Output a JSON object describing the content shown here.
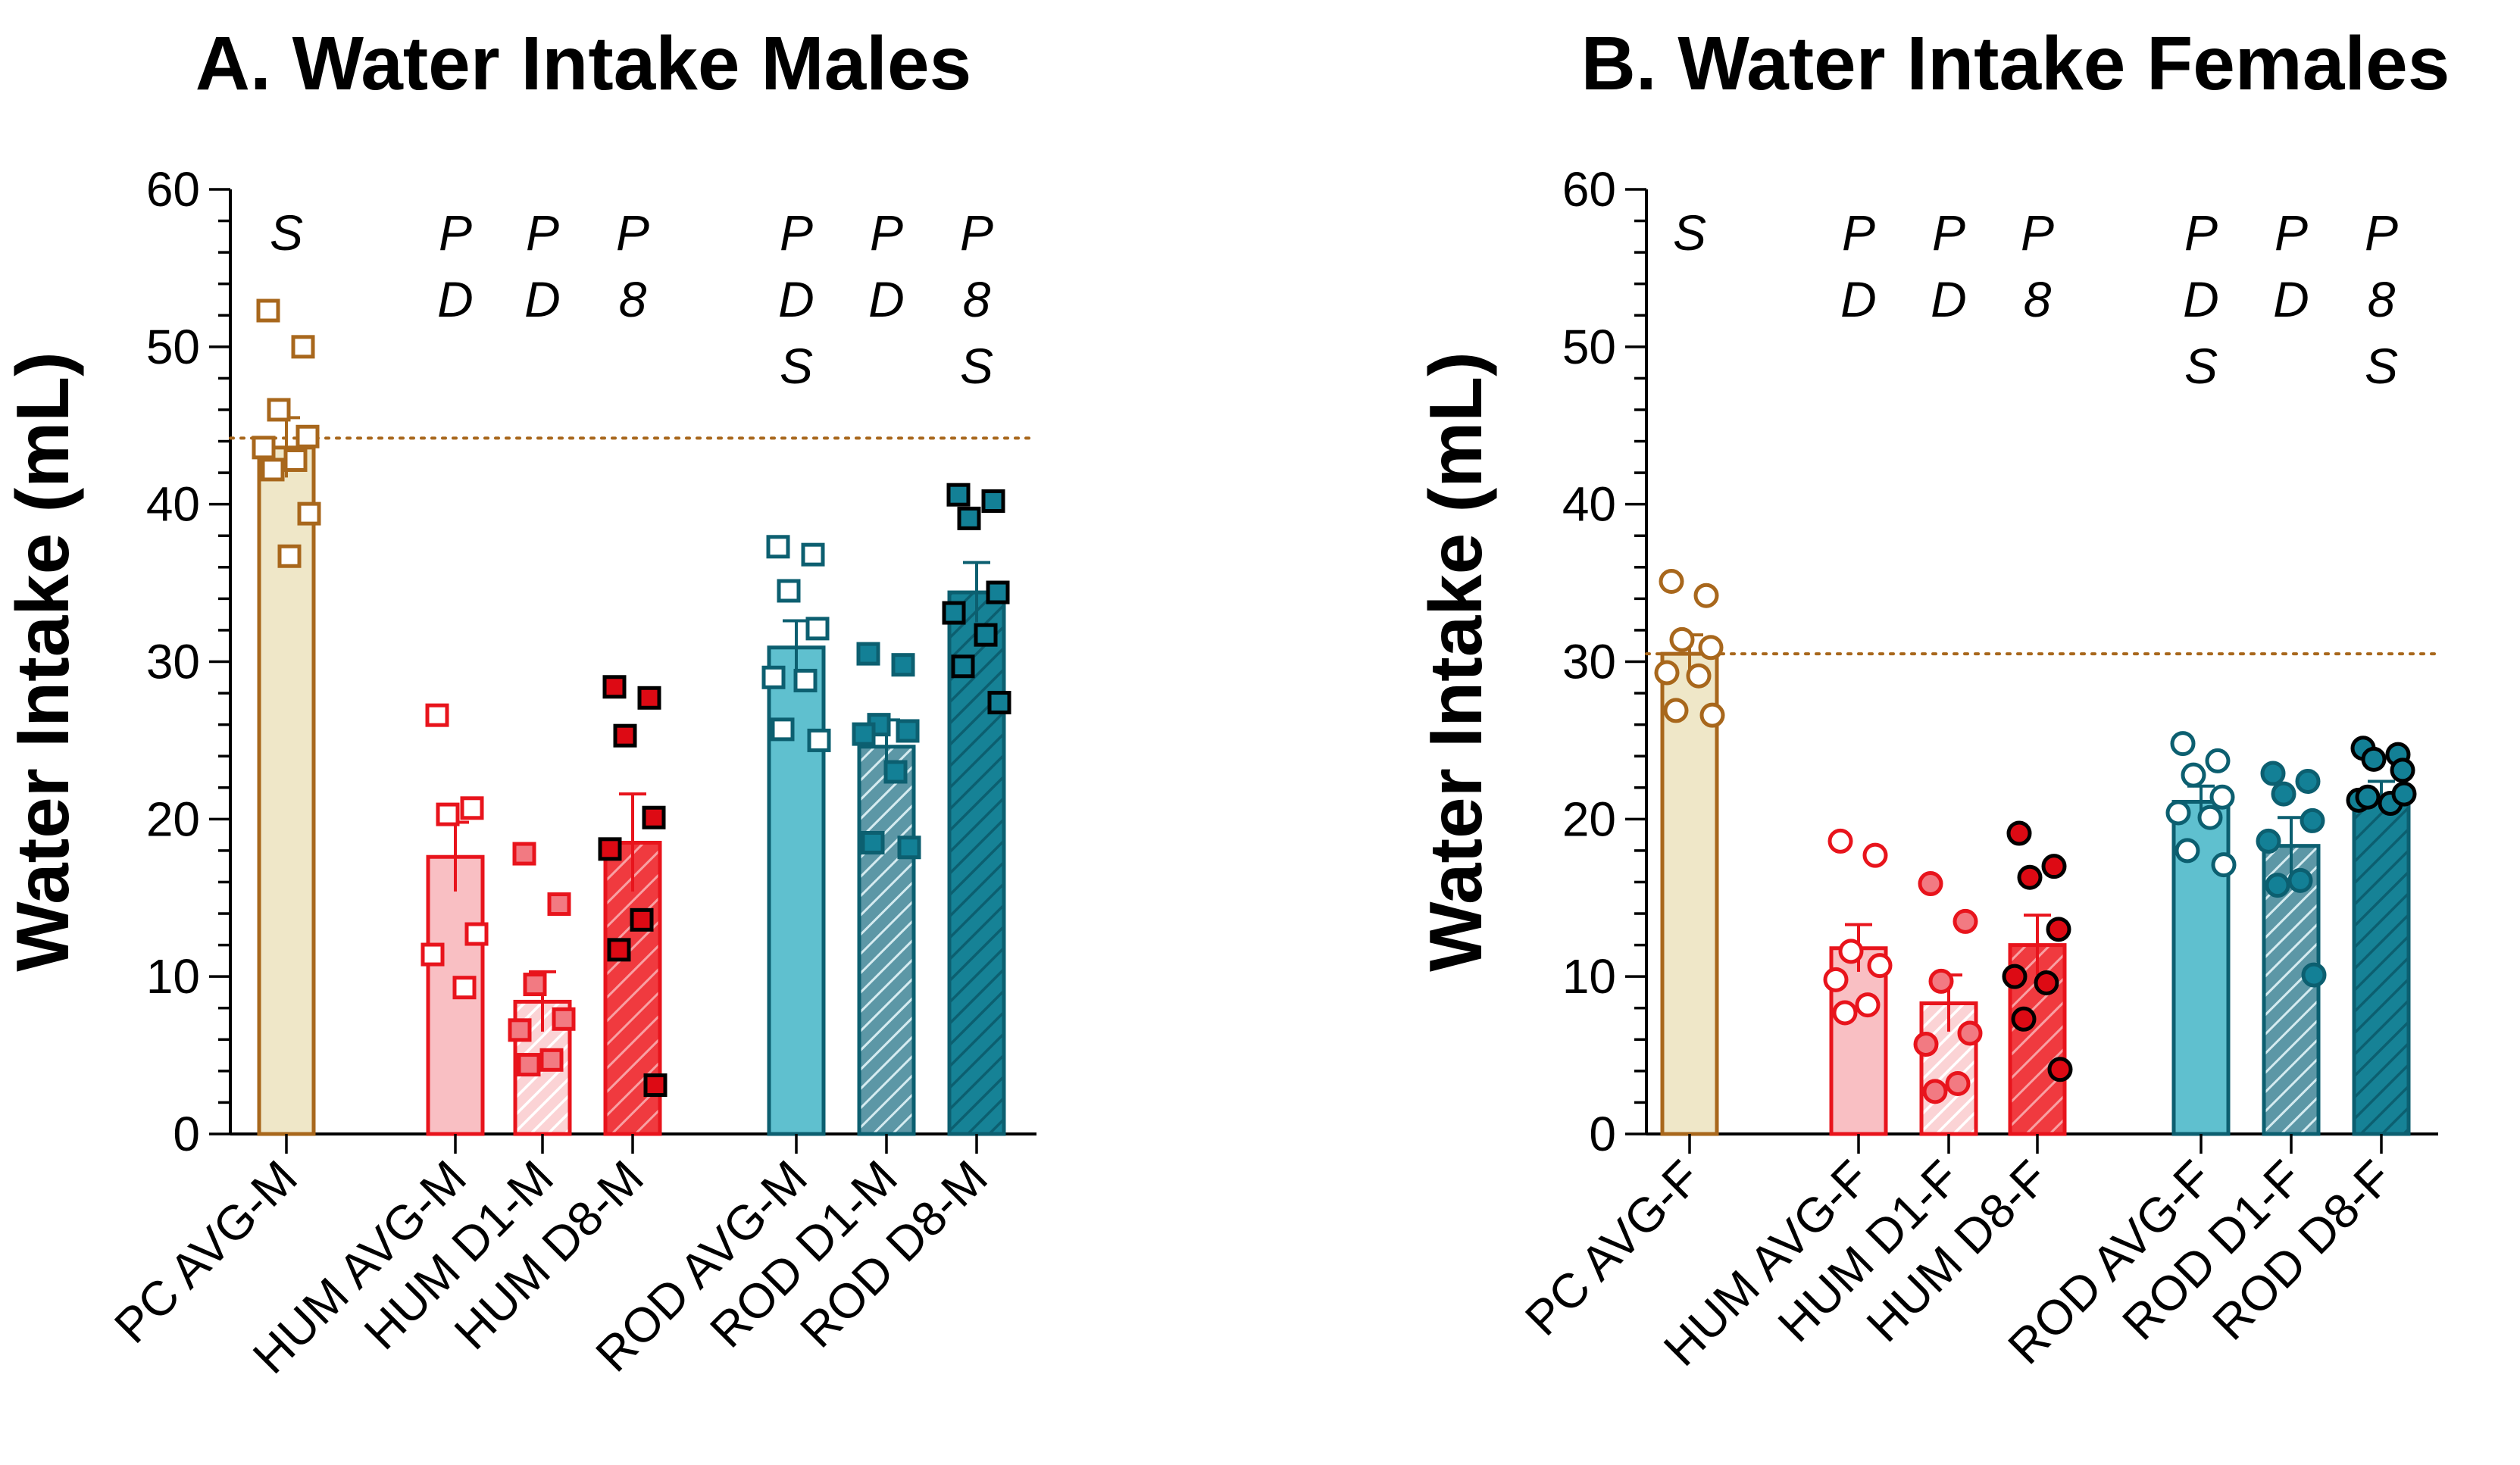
{
  "colors": {
    "pc_fill": "#EFE7C8",
    "pc_stroke": "#A8671C",
    "hum_avg_fill": "#F9BFC3",
    "hum_d1_fill": "#F7A9AE",
    "hum_d8_fill": "#F03A3F",
    "hum_stroke": "#E8141C",
    "rod_avg_fill": "#5FC0CF",
    "rod_d1_fill": "#6AAFBF",
    "rod_d8_fill": "#168296",
    "rod_stroke": "#0C5F70",
    "hum_pt_light": "#F27A82",
    "hum_pt_dark": "#DD0A14",
    "rod_pt": "#138096"
  },
  "chart_data": [
    {
      "panel": "A",
      "type": "bar",
      "title": "A. Water Intake Males",
      "xlabel": "",
      "ylabel": "Water  Intake (mL)",
      "ylim": [
        0,
        60
      ],
      "yticks": [
        "0",
        "10",
        "20",
        "30",
        "40",
        "50",
        "60"
      ],
      "reference_line": 44.2,
      "marker": "square",
      "categories": [
        "PC AVG-M",
        "HUM AVG-M",
        "HUM D1-M",
        "HUM D8-M",
        "ROD AVG-M",
        "ROD D1-M",
        "ROD D8-M"
      ],
      "means": [
        43.6,
        17.6,
        8.4,
        18.5,
        30.9,
        24.6,
        34.4
      ],
      "sem": [
        1.9,
        2.2,
        1.9,
        3.1,
        1.7,
        1.7,
        1.9
      ],
      "annotations": [
        [
          "S"
        ],
        [
          "P",
          "D"
        ],
        [
          "P",
          "D"
        ],
        [
          "P",
          "8"
        ],
        [
          "P",
          "D",
          "S"
        ],
        [
          "P",
          "D"
        ],
        [
          "P",
          "8",
          "S"
        ]
      ],
      "points": [
        [
          52.3,
          50.0,
          46.0,
          44.3,
          43.6,
          42.8,
          42.2,
          39.4,
          36.7
        ],
        [
          26.6,
          20.7,
          20.3,
          12.7,
          11.4,
          9.3
        ],
        [
          17.8,
          14.6,
          9.5,
          7.3,
          6.6,
          4.7,
          4.4
        ],
        [
          28.4,
          27.7,
          25.3,
          20.1,
          18.1,
          13.6,
          11.7,
          3.1
        ],
        [
          37.3,
          36.8,
          34.5,
          32.1,
          29.0,
          28.8,
          25.7,
          25.0
        ],
        [
          30.5,
          29.8,
          26.0,
          25.6,
          25.4,
          23.0,
          18.5,
          18.2
        ],
        [
          40.6,
          40.2,
          39.1,
          34.4,
          33.1,
          31.7,
          29.7,
          27.4
        ]
      ]
    },
    {
      "panel": "B",
      "type": "bar",
      "title": "B. Water Intake Females",
      "xlabel": "",
      "ylabel": "Water  Intake (mL)",
      "ylim": [
        0,
        60
      ],
      "yticks": [
        "0",
        "10",
        "20",
        "30",
        "40",
        "50",
        "60"
      ],
      "reference_line": 30.5,
      "marker": "circle",
      "categories": [
        "PC AVG-F",
        "HUM AVG-F",
        "HUM D1-F",
        "HUM D8-F",
        "ROD AVG-F",
        "ROD D1-F",
        "ROD D8-F"
      ],
      "means": [
        30.5,
        11.8,
        8.3,
        12.0,
        21.1,
        18.3,
        21.5
      ],
      "sem": [
        1.2,
        1.5,
        1.8,
        1.9,
        1.0,
        1.8,
        0.9
      ],
      "annotations": [
        [
          "S"
        ],
        [
          "P",
          "D"
        ],
        [
          "P",
          "D"
        ],
        [
          "P",
          "8"
        ],
        [
          "P",
          "D",
          "S"
        ],
        [
          "P",
          "D"
        ],
        [
          "P",
          "8",
          "S"
        ]
      ],
      "points": [
        [
          35.1,
          34.2,
          31.4,
          30.9,
          29.3,
          29.1,
          26.9,
          26.6
        ],
        [
          18.6,
          17.7,
          11.6,
          10.7,
          9.8,
          8.2,
          7.7
        ],
        [
          15.9,
          13.5,
          9.7,
          6.4,
          5.7,
          3.2,
          2.7
        ],
        [
          19.1,
          17.0,
          16.3,
          13.0,
          10.0,
          9.6,
          7.3,
          4.1
        ],
        [
          24.8,
          23.7,
          22.8,
          21.4,
          20.4,
          20.1,
          18.0,
          17.1
        ],
        [
          22.9,
          22.4,
          21.6,
          19.9,
          18.6,
          16.1,
          15.8,
          10.1
        ],
        [
          24.5,
          24.1,
          23.8,
          23.1,
          21.2,
          21.0,
          21.4,
          21.6
        ]
      ]
    }
  ]
}
